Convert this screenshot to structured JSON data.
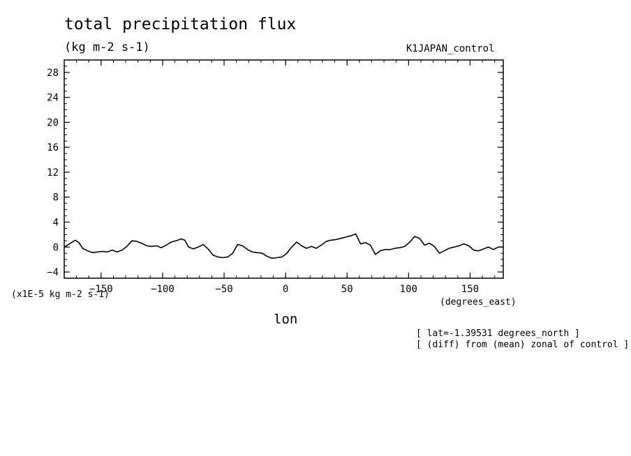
{
  "chart_data": {
    "type": "line",
    "title": "total precipitation flux",
    "units": "(kg m-2 s-1)",
    "run_label": "K1JAPAN_control",
    "scale_label": "(x1E-5 kg m-2 s-1)",
    "xlabel": "lon",
    "x_units": "(degrees_east)",
    "notes": [
      "[ lat=-1.39531 degrees_north ]",
      "[ (diff) from (mean) zonal of control ]"
    ],
    "xlim": [
      -180,
      177
    ],
    "ylim": [
      -5,
      30
    ],
    "xticks": [
      -150,
      -100,
      -50,
      0,
      50,
      100,
      150
    ],
    "yticks": [
      -4,
      0,
      4,
      8,
      12,
      16,
      20,
      24,
      28
    ],
    "series": [
      {
        "name": "total precipitation flux",
        "x": [
          -180,
          -175,
          -171,
          -168,
          -165,
          -161,
          -157,
          -153,
          -149,
          -145,
          -141,
          -137,
          -133,
          -129,
          -125,
          -121,
          -117,
          -113,
          -109,
          -105,
          -101,
          -97,
          -93,
          -89,
          -85,
          -82,
          -79,
          -75,
          -71,
          -67,
          -63,
          -59,
          -55,
          -51,
          -47,
          -43,
          -39,
          -35,
          -31,
          -27,
          -23,
          -19,
          -15,
          -11,
          -7,
          -3,
          1,
          5,
          9,
          13,
          17,
          21,
          25,
          29,
          33,
          37,
          41,
          45,
          49,
          53,
          57,
          61,
          65,
          69,
          73,
          77,
          81,
          85,
          89,
          93,
          97,
          101,
          105,
          109,
          113,
          117,
          121,
          125,
          129,
          133,
          137,
          141,
          145,
          149,
          153,
          157,
          161,
          165,
          169,
          173,
          177
        ],
        "y": [
          0.0,
          0.6,
          1.1,
          0.7,
          -0.2,
          -0.6,
          -0.9,
          -0.8,
          -0.7,
          -0.8,
          -0.5,
          -0.8,
          -0.5,
          0.1,
          1.0,
          0.9,
          0.6,
          0.2,
          0.1,
          0.2,
          -0.1,
          0.3,
          0.8,
          1.0,
          1.3,
          1.1,
          0.0,
          -0.3,
          0.0,
          0.4,
          -0.3,
          -1.3,
          -1.6,
          -1.7,
          -1.6,
          -1.0,
          0.4,
          0.2,
          -0.4,
          -0.8,
          -0.9,
          -1.0,
          -1.5,
          -1.8,
          -1.7,
          -1.6,
          -1.0,
          0.0,
          0.8,
          0.2,
          -0.2,
          0.1,
          -0.2,
          0.3,
          0.9,
          1.1,
          1.2,
          1.4,
          1.6,
          1.8,
          2.1,
          0.5,
          0.7,
          0.3,
          -1.2,
          -0.6,
          -0.4,
          -0.4,
          -0.2,
          -0.1,
          0.1,
          0.8,
          1.7,
          1.4,
          0.3,
          0.6,
          0.1,
          -1.0,
          -0.6,
          -0.2,
          0.0,
          0.2,
          0.5,
          0.2,
          -0.5,
          -0.6,
          -0.3,
          0.0,
          -0.4,
          0.0,
          0.0
        ]
      }
    ]
  }
}
